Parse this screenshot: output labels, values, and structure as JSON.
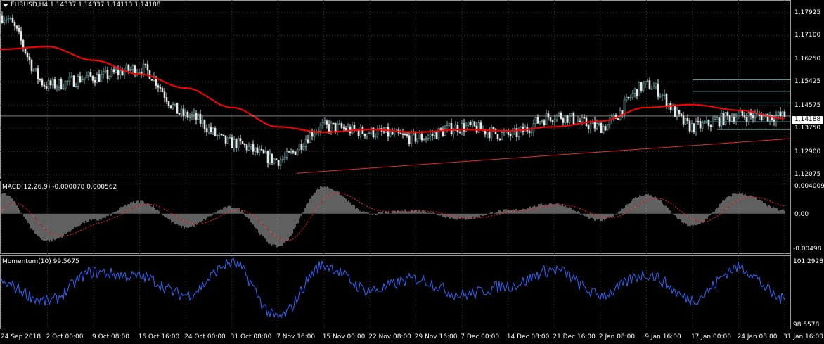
{
  "main_pane": {
    "symbol": "EURUSD,H4",
    "ohlc": "1.14337 1.14337 1.14113 1.14188",
    "price_ticks": [
      "1.17925",
      "1.17100",
      "1.16250",
      "1.15425",
      "1.14575",
      "1.13750",
      "1.12900",
      "1.12075"
    ],
    "current_price": "1.14188"
  },
  "macd_pane": {
    "title": "MACD(12,26,9) -0.000078 0.000562",
    "ticks": [
      "0.004009",
      "0.00",
      "-0.00498"
    ]
  },
  "momentum_pane": {
    "title": "Momentum(10) 99.5675",
    "ticks": [
      "101.2928",
      "98.5578"
    ]
  },
  "time_axis": [
    "24 Sep 2018",
    "2 Oct 00:00",
    "9 Oct 08:00",
    "16 Oct 16:00",
    "24 Oct 00:00",
    "31 Oct 08:00",
    "7 Nov 16:00",
    "15 Nov 00:00",
    "22 Nov 08:00",
    "29 Nov 16:00",
    "7 Dec 00:00",
    "14 Dec 08:00",
    "21 Dec 16:00",
    "2 Jan 08:00",
    "9 Jan 16:00",
    "17 Jan 00:00",
    "24 Jan 08:00",
    "31 Jan 16:00"
  ],
  "colors": {
    "background": "#000000",
    "bull_candle": "#7fb3b3",
    "bear_candle": "#e8e8e8",
    "moving_average": "#ff0000",
    "trendline": "#e03030",
    "fib_levels": "#6aa6a6",
    "macd_histogram": "#c0c0c0",
    "macd_signal": "#ff2020",
    "momentum": "#3366ff",
    "grid": "#3a3a3a"
  },
  "chart_data": {
    "type": "line",
    "price_anchors": {
      "x": [
        "24 Sep 2018",
        "2 Oct 00:00",
        "9 Oct 08:00",
        "16 Oct 16:00",
        "24 Oct 00:00",
        "31 Oct 08:00",
        "7 Nov 16:00",
        "15 Nov 00:00",
        "22 Nov 08:00",
        "29 Nov 16:00",
        "7 Dec 00:00",
        "14 Dec 08:00",
        "21 Dec 16:00",
        "2 Jan 08:00",
        "9 Jan 16:00",
        "17 Jan 00:00",
        "24 Jan 08:00",
        "31 Jan 16:00"
      ],
      "close": [
        1.178,
        1.153,
        1.156,
        1.159,
        1.142,
        1.132,
        1.126,
        1.138,
        1.136,
        1.134,
        1.138,
        1.135,
        1.142,
        1.138,
        1.153,
        1.138,
        1.142,
        1.1418
      ]
    },
    "moving_average": [
      1.166,
      1.167,
      1.162,
      1.157,
      1.152,
      1.145,
      1.138,
      1.136,
      1.137,
      1.136,
      1.137,
      1.1365,
      1.138,
      1.14,
      1.145,
      1.146,
      1.144,
      1.141
    ],
    "macd_anchors": [
      0.003,
      -0.004,
      -0.001,
      0.0018,
      -0.002,
      0.001,
      -0.0048,
      0.004,
      0.0,
      0.0005,
      -0.0008,
      0.0005,
      0.0015,
      -0.001,
      0.0028,
      -0.0018,
      0.003,
      0.0005
    ],
    "momentum_anchors": [
      100.3,
      99.5,
      100.8,
      100.6,
      99.8,
      101.2,
      98.8,
      101.1,
      100.0,
      100.5,
      99.8,
      100.2,
      100.9,
      99.8,
      100.7,
      99.6,
      101.0,
      99.6
    ],
    "price_range": [
      1.12075,
      1.17925
    ],
    "macd_range": [
      -0.00498,
      0.004009
    ],
    "momentum_range": [
      98.5578,
      101.2928
    ]
  }
}
